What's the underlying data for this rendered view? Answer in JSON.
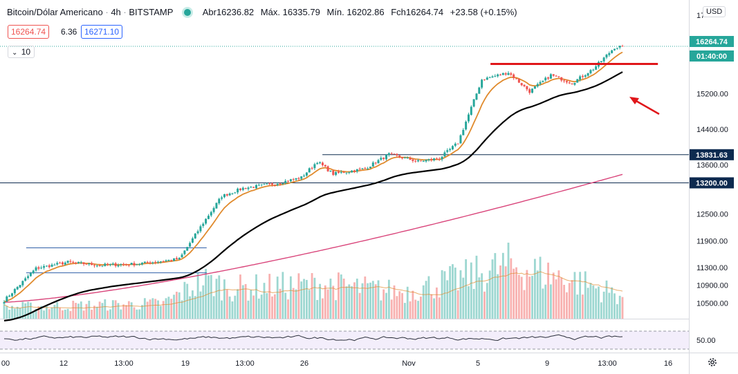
{
  "header": {
    "symbol": "Bitcoin/Dólar Americano",
    "interval": "4h",
    "exchange": "BITSTAMP",
    "open_label": "Abr",
    "open_value": "16236.82",
    "high_label": "Máx.",
    "high_value": "16335.79",
    "low_label": "Mín.",
    "low_value": "16202.86",
    "close_label": "Fch",
    "close_value": "16264.74",
    "change": "+23.58 (+0.15%)",
    "bid": "16264.74",
    "spread": "6.36",
    "ask": "16271.10",
    "indicator_length": "10",
    "currency": "USD"
  },
  "colors": {
    "up": "#26a69a",
    "down": "#ef5350",
    "ema_fast": "#e08a2c",
    "ema_slow": "#000000",
    "ma_long": "#d9447a",
    "resistance": "#e0161a",
    "arrow": "#e0161a",
    "level_line": "#0d2a4f",
    "axis_text": "#131722",
    "grid": "#e0e3eb"
  },
  "chart_data": {
    "type": "candlestick",
    "symbol": "BTC/USD",
    "ylim": [
      10150,
      17150
    ],
    "yticks": [
      10500,
      10900,
      11300,
      11900,
      12500,
      13600,
      14400,
      15200
    ],
    "ytick_labels": [
      "10500.00",
      "10900.00",
      "11300.00",
      "11900.00",
      "12500.00",
      "13600.00",
      "14400.00",
      "15200.00"
    ],
    "top_tick_label": "17",
    "x_labels": [
      "00",
      "12",
      "13:00",
      "19",
      "13:00",
      "26",
      "Nov",
      "5",
      "9",
      "13:00",
      "16"
    ],
    "badges": [
      {
        "label": "16264.74",
        "value": 16264.74,
        "style": "last"
      },
      {
        "label": "01:40:00",
        "value": 15860,
        "style": "countdown"
      },
      {
        "label": "13831.63",
        "value": 13831.63,
        "style": "level"
      },
      {
        "label": "13200.00",
        "value": 13200.0,
        "style": "level"
      }
    ],
    "levels": [
      {
        "value": 13831.63,
        "x_start": 0.468
      },
      {
        "value": 13200.0,
        "x_start": 0.0
      }
    ],
    "resistance": {
      "value": 15870,
      "x_start": 0.712,
      "x_end": 0.955
    },
    "range_box": {
      "top": 11740,
      "bottom": 11180,
      "x_start": 0.038,
      "x_end": 0.3
    },
    "close_anchors": [
      [
        0,
        10560
      ],
      [
        12,
        11280
      ],
      [
        24,
        11420
      ],
      [
        36,
        11350
      ],
      [
        50,
        11380
      ],
      [
        60,
        11450
      ],
      [
        66,
        11490
      ],
      [
        75,
        12300
      ],
      [
        82,
        12900
      ],
      [
        90,
        13080
      ],
      [
        102,
        13180
      ],
      [
        112,
        13320
      ],
      [
        118,
        13680
      ],
      [
        124,
        13400
      ],
      [
        136,
        13520
      ],
      [
        145,
        13840
      ],
      [
        156,
        13680
      ],
      [
        164,
        13750
      ],
      [
        171,
        14100
      ],
      [
        180,
        15520
      ],
      [
        190,
        15680
      ],
      [
        198,
        15250
      ],
      [
        206,
        15620
      ],
      [
        214,
        15440
      ],
      [
        222,
        15760
      ],
      [
        230,
        16240
      ],
      [
        233,
        16264.74
      ]
    ],
    "candle_count": 234,
    "volume_anchors": [
      [
        0,
        0.15
      ],
      [
        60,
        0.2
      ],
      [
        75,
        0.5
      ],
      [
        86,
        0.4
      ],
      [
        120,
        0.45
      ],
      [
        150,
        0.35
      ],
      [
        175,
        0.55
      ],
      [
        190,
        0.7
      ],
      [
        215,
        0.5
      ],
      [
        233,
        0.3
      ]
    ],
    "volume_ma_level": 0.3,
    "rsi": {
      "label": "50.00",
      "upper": 70,
      "lower": 30,
      "mid": 50
    }
  }
}
